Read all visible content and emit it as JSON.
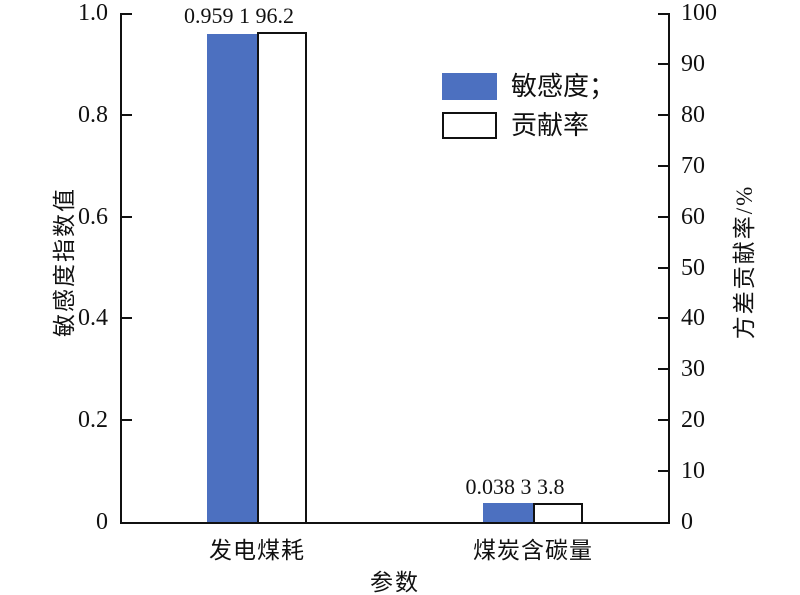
{
  "chart_data": {
    "type": "bar",
    "categories": [
      "发电煤耗",
      "煤炭含碳量"
    ],
    "series": [
      {
        "name": "敏感度",
        "axis": "left",
        "values": [
          0.9591,
          0.0383
        ],
        "color": "#4c70c0",
        "filled": true
      },
      {
        "name": "贡献率",
        "axis": "right",
        "values": [
          96.2,
          3.8
        ],
        "color": "#ffffff",
        "filled": false
      }
    ],
    "value_labels": [
      "0.959 1 96.2",
      "0.038 3 3.8"
    ],
    "xlabel": "参数",
    "ylabel_left": "敏感度指数值",
    "ylabel_right": "方差贡献率/%",
    "ylim_left": [
      0,
      1.0
    ],
    "ylim_right": [
      0,
      100
    ],
    "yticks_left": [
      "1.0",
      "0.8",
      "0.6",
      "0.4",
      "0.2",
      "0"
    ],
    "yticks_right": [
      "100",
      "90",
      "80",
      "70",
      "60",
      "50",
      "40",
      "30",
      "20",
      "10",
      "0"
    ],
    "grid": false,
    "legend_position": "upper-center-right",
    "legend": [
      {
        "label": "敏感度；",
        "swatch": "#4c70c0",
        "filled": true
      },
      {
        "label": "贡献率",
        "swatch": "#ffffff",
        "filled": false
      }
    ]
  },
  "colors": {
    "bar_blue": "#4c70c0",
    "bar_outline": "#111111",
    "axis": "#111111",
    "background": "#ffffff"
  }
}
